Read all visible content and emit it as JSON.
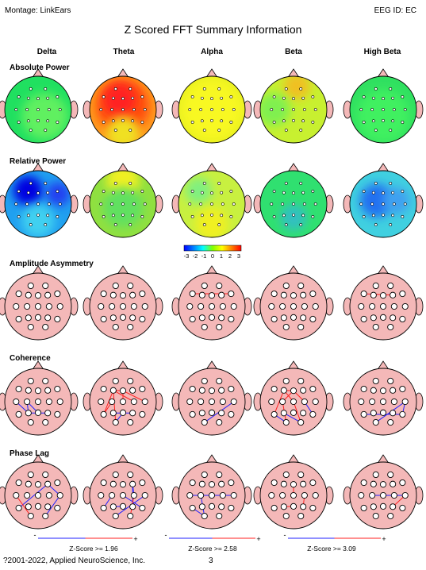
{
  "header": {
    "montage": "Montage:  LinkEars",
    "eeg_id": "EEG ID:  EC",
    "title": "Z Scored FFT Summary Information"
  },
  "bands": [
    "Delta",
    "Theta",
    "Alpha",
    "Beta",
    "High Beta"
  ],
  "sections": [
    "Absolute Power",
    "Relative Power",
    "Amplitude Asymmetry",
    "Coherence",
    "Phase Lag"
  ],
  "colorbar": {
    "tick_labels": [
      "-3",
      "-2",
      "-1",
      "0",
      "1",
      "2",
      "3"
    ],
    "colors": [
      "#0000ff",
      "#0080ff",
      "#00ffff",
      "#80ff00",
      "#ffff00",
      "#ff8000",
      "#ff0000"
    ]
  },
  "colors": {
    "head_fill_connectivity": "#f4b8b8",
    "ear_fill": "#f4b8b8",
    "positive_line": "#ff2020",
    "negative_line": "#2020ff"
  },
  "power_maps": {
    "absolute": [
      {
        "band": "Delta",
        "base": "#20e060",
        "patches": [
          {
            "c": "#60f060",
            "rx": 0.6,
            "ry": 0.6,
            "r": 0.35
          }
        ]
      },
      {
        "band": "Theta",
        "base": "#ff9a20",
        "patches": [
          {
            "c": "#ff5010",
            "rx": 0.5,
            "ry": 0.45,
            "r": 0.4
          },
          {
            "c": "#ff2020",
            "rx": 0.45,
            "ry": 0.35,
            "r": 0.25
          },
          {
            "c": "#f0e020",
            "rx": 0.5,
            "ry": 0.85,
            "r": 0.25
          }
        ]
      },
      {
        "band": "Alpha",
        "base": "#e8f020",
        "patches": [
          {
            "c": "#f8f820",
            "rx": 0.5,
            "ry": 0.5,
            "r": 0.45
          }
        ]
      },
      {
        "band": "Beta",
        "base": "#c8f030",
        "patches": [
          {
            "c": "#f0c020",
            "rx": 0.55,
            "ry": 0.15,
            "r": 0.2
          },
          {
            "c": "#80f050",
            "rx": 0.2,
            "ry": 0.5,
            "r": 0.25
          }
        ]
      },
      {
        "band": "High Beta",
        "base": "#30e060",
        "patches": [
          {
            "c": "#40f060",
            "rx": 0.5,
            "ry": 0.6,
            "r": 0.4
          }
        ]
      }
    ],
    "relative": [
      {
        "band": "Delta",
        "base": "#20a0f0",
        "patches": [
          {
            "c": "#0000e0",
            "rx": 0.35,
            "ry": 0.3,
            "r": 0.22
          },
          {
            "c": "#2040f0",
            "rx": 0.8,
            "ry": 0.35,
            "r": 0.18
          },
          {
            "c": "#40d0f0",
            "rx": 0.5,
            "ry": 0.75,
            "r": 0.25
          }
        ]
      },
      {
        "band": "Theta",
        "base": "#90e040",
        "patches": [
          {
            "c": "#f0f020",
            "rx": 0.5,
            "ry": 0.15,
            "r": 0.25
          },
          {
            "c": "#60e060",
            "rx": 0.5,
            "ry": 0.55,
            "r": 0.3
          }
        ]
      },
      {
        "band": "Alpha",
        "base": "#c8f040",
        "patches": [
          {
            "c": "#80f080",
            "rx": 0.3,
            "ry": 0.3,
            "r": 0.2
          },
          {
            "c": "#f0f020",
            "rx": 0.5,
            "ry": 0.8,
            "r": 0.25
          }
        ]
      },
      {
        "band": "Beta",
        "base": "#30e070",
        "patches": [
          {
            "c": "#30c0c0",
            "rx": 0.5,
            "ry": 0.7,
            "r": 0.2
          }
        ]
      },
      {
        "band": "High Beta",
        "base": "#40d0e0",
        "patches": [
          {
            "c": "#2070f0",
            "rx": 0.4,
            "ry": 0.45,
            "r": 0.25
          },
          {
            "c": "#40a0f0",
            "rx": 0.7,
            "ry": 0.45,
            "r": 0.2
          }
        ]
      }
    ]
  },
  "connectivity": {
    "asymmetry": [
      {
        "band": "Delta",
        "lines": []
      },
      {
        "band": "Theta",
        "lines": []
      },
      {
        "band": "Alpha",
        "lines": [
          {
            "a": 2,
            "b": 6,
            "c": "pos"
          }
        ]
      },
      {
        "band": "Beta",
        "lines": []
      },
      {
        "band": "High Beta",
        "lines": [
          {
            "a": 2,
            "b": 5,
            "c": "pos"
          }
        ]
      }
    ],
    "coherence": [
      {
        "band": "Delta",
        "lines": [
          {
            "a": 8,
            "b": 13,
            "c": "neg"
          },
          {
            "a": 8,
            "b": 14,
            "c": "neg"
          },
          {
            "a": 13,
            "b": 15,
            "c": "neg"
          },
          {
            "a": 7,
            "b": 13,
            "c": "neg"
          }
        ]
      },
      {
        "band": "Theta",
        "lines": [
          {
            "a": 3,
            "b": 10,
            "c": "pos"
          },
          {
            "a": 3,
            "b": 12,
            "c": "pos"
          },
          {
            "a": 4,
            "b": 11,
            "c": "pos"
          },
          {
            "a": 3,
            "b": 4,
            "c": "pos"
          },
          {
            "a": 4,
            "b": 9,
            "c": "pos"
          },
          {
            "a": 8,
            "b": 12,
            "c": "pos"
          },
          {
            "a": 3,
            "b": 17,
            "c": "pos"
          },
          {
            "a": 13,
            "b": 15,
            "c": "neg"
          },
          {
            "a": 14,
            "b": 17,
            "c": "neg"
          }
        ]
      },
      {
        "band": "Alpha",
        "lines": [
          {
            "a": 11,
            "b": 17,
            "c": "neg"
          }
        ]
      },
      {
        "band": "Beta",
        "lines": [
          {
            "a": 3,
            "b": 4,
            "c": "pos"
          },
          {
            "a": 4,
            "b": 8,
            "c": "pos"
          },
          {
            "a": 3,
            "b": 12,
            "c": "pos"
          },
          {
            "a": 4,
            "b": 10,
            "c": "pos"
          },
          {
            "a": 8,
            "b": 17,
            "c": "pos"
          },
          {
            "a": 3,
            "b": 9,
            "c": "pos"
          },
          {
            "a": 9,
            "b": 18,
            "c": "pos"
          },
          {
            "a": 13,
            "b": 18,
            "c": "neg"
          },
          {
            "a": 12,
            "b": 17,
            "c": "neg"
          },
          {
            "a": 10,
            "b": 16,
            "c": "neg"
          }
        ]
      },
      {
        "band": "High Beta",
        "lines": [
          {
            "a": 11,
            "b": 17,
            "c": "neg"
          },
          {
            "a": 11,
            "b": 16,
            "c": "neg"
          },
          {
            "a": 12,
            "b": 16,
            "c": "neg"
          }
        ]
      }
    ],
    "phase_lag": [
      {
        "band": "Delta",
        "lines": [
          {
            "a": 5,
            "b": 12,
            "c": "neg"
          },
          {
            "a": 5,
            "b": 11,
            "c": "neg"
          },
          {
            "a": 11,
            "b": 18,
            "c": "neg"
          },
          {
            "a": 7,
            "b": 17,
            "c": "pos"
          }
        ]
      },
      {
        "band": "Theta",
        "lines": [
          {
            "a": 5,
            "b": 10,
            "c": "neg"
          },
          {
            "a": 8,
            "b": 12,
            "c": "neg"
          },
          {
            "a": 9,
            "b": 16,
            "c": "neg"
          },
          {
            "a": 11,
            "b": 17,
            "c": "neg"
          },
          {
            "a": 13,
            "b": 14,
            "c": "neg"
          },
          {
            "a": 5,
            "b": 15,
            "c": "neg"
          },
          {
            "a": 10,
            "b": 18,
            "c": "pos"
          }
        ]
      },
      {
        "band": "Alpha",
        "lines": [
          {
            "a": 7,
            "b": 10,
            "c": "neg"
          },
          {
            "a": 7,
            "b": 11,
            "c": "neg"
          },
          {
            "a": 8,
            "b": 17,
            "c": "neg"
          },
          {
            "a": 12,
            "b": 17,
            "c": "neg"
          }
        ]
      },
      {
        "band": "Beta",
        "lines": [
          {
            "a": 4,
            "b": 9,
            "c": "pos"
          },
          {
            "a": 10,
            "b": 15,
            "c": "pos"
          },
          {
            "a": 13,
            "b": 14,
            "c": "pos"
          }
        ]
      },
      {
        "band": "High Beta",
        "lines": [
          {
            "a": 8,
            "b": 11,
            "c": "neg"
          },
          {
            "a": 11,
            "b": 15,
            "c": "pos"
          }
        ]
      }
    ]
  },
  "zscore_legend": [
    {
      "label": "Z-Score >= 1.96",
      "minus": "-",
      "plus": "+"
    },
    {
      "label": "Z-Score >= 2.58",
      "minus": "-",
      "plus": "+"
    },
    {
      "label": "Z-Score >= 3.09",
      "minus": "-",
      "plus": "+"
    }
  ],
  "footer": {
    "copyright": "?2001-2022, Applied NeuroScience, Inc.",
    "page": "3"
  }
}
